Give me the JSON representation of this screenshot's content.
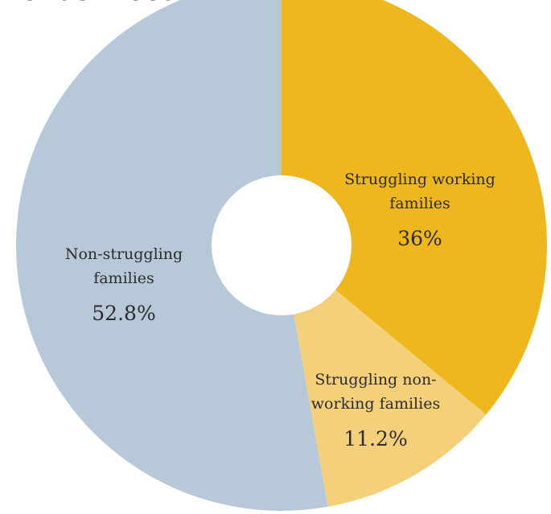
{
  "title": "ends meet",
  "chart_data": {
    "type": "pie",
    "title": "ends meet",
    "donut": true,
    "slices": [
      {
        "label_lines": [
          "Struggling working",
          "families"
        ],
        "value": 36,
        "value_label": "36%",
        "color": "#eeb71e"
      },
      {
        "label_lines": [
          "Struggling non-",
          "working families"
        ],
        "value": 11.2,
        "value_label": "11.2%",
        "color": "#f5d07b"
      },
      {
        "label_lines": [
          "Non-struggling",
          "families"
        ],
        "value": 52.8,
        "value_label": "52.8%",
        "color": "#b7c9d9"
      }
    ],
    "start_angle": "12 o'clock",
    "direction": "clockwise",
    "legend": "none"
  }
}
